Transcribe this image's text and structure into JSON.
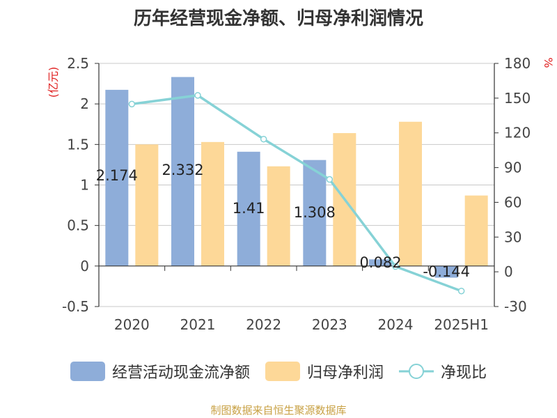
{
  "chart_data": {
    "type": "bar",
    "title": "历年经营现金净额、归母净利润情况",
    "categories": [
      "2020",
      "2021",
      "2022",
      "2023",
      "2024",
      "2025H1"
    ],
    "left_axis": {
      "unit": "(亿元)",
      "ylim": [
        -0.5,
        2.5
      ],
      "ticks": [
        "2.5",
        "2",
        "1.5",
        "1",
        "0.5",
        "0",
        "-0.5"
      ]
    },
    "right_axis": {
      "unit": "%",
      "ylim": [
        -30,
        180
      ],
      "ticks": [
        "180",
        "150",
        "120",
        "90",
        "60",
        "30",
        "0",
        "-30"
      ]
    },
    "series": [
      {
        "name": "经营活动现金流净额",
        "type": "bar",
        "axis": "left",
        "color": "#8eadd9",
        "values": [
          2.174,
          2.332,
          1.41,
          1.308,
          0.082,
          -0.144
        ],
        "labels": [
          "2.174",
          "2.332",
          "1.41",
          "1.308",
          "0.082",
          "-0.144"
        ]
      },
      {
        "name": "归母净利润",
        "type": "bar",
        "axis": "left",
        "color": "#fdd898",
        "values": [
          1.5,
          1.53,
          1.23,
          1.64,
          1.78,
          0.87
        ]
      },
      {
        "name": "净现比",
        "type": "line",
        "axis": "right",
        "color": "#86d2d6",
        "values": [
          144.9,
          152.4,
          114.6,
          79.8,
          4.6,
          -16.6
        ]
      }
    ],
    "grid": true,
    "legend": "bottom"
  },
  "source": "制图数据来自恒生聚源数据库"
}
